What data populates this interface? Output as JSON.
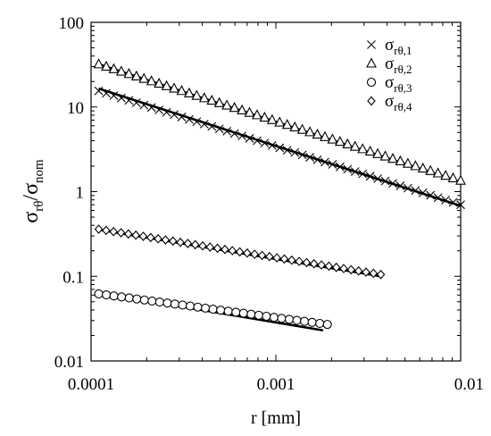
{
  "chart_data": {
    "type": "scatter",
    "x_scale": "log",
    "y_scale": "log",
    "xlim": [
      0.0001,
      0.01
    ],
    "ylim": [
      0.01,
      100
    ],
    "x_ticks": [
      "0.0001",
      "0.001",
      "0.01"
    ],
    "y_ticks": [
      "0.01",
      "0.1",
      "1",
      "10",
      "100"
    ],
    "xlabel": "r [mm]",
    "ylabel": {
      "main": "σ",
      "sub1": "rθ",
      "slash": "/σ",
      "sub2": "nom"
    },
    "grid": false,
    "legend_position": "top-right",
    "series": [
      {
        "key": "s1",
        "legend_main": "σ",
        "legend_sub": "rθ,1",
        "marker": "cross",
        "x_range": [
          0.00011,
          0.01
        ],
        "y_start": 15.5,
        "y_end": 0.7,
        "fit_line": {
          "x": [
            0.00011,
            0.01
          ],
          "y": [
            16.5,
            0.68
          ]
        }
      },
      {
        "key": "s2",
        "legend_main": "σ",
        "legend_sub": "rθ,2",
        "marker": "triangle",
        "x_range": [
          0.00011,
          0.01
        ],
        "y_start": 32,
        "y_end": 1.35,
        "fit_line": {
          "x": [
            0.00011,
            0.01
          ],
          "y": [
            32,
            1.3
          ]
        }
      },
      {
        "key": "s3",
        "legend_main": "σ",
        "legend_sub": "rθ,3",
        "marker": "circle",
        "x_range": [
          0.00011,
          0.0019
        ],
        "y_start": 0.062,
        "y_end": 0.027,
        "fit_line": {
          "x": [
            0.00011,
            0.0018
          ],
          "y": [
            0.064,
            0.023
          ]
        }
      },
      {
        "key": "s4",
        "legend_main": "σ",
        "legend_sub": "rθ,4",
        "marker": "diamond",
        "x_range": [
          0.00011,
          0.0037
        ],
        "y_start": 0.36,
        "y_end": 0.105,
        "fit_line": {
          "x": [
            0.00011,
            0.0037
          ],
          "y": [
            0.355,
            0.1
          ]
        }
      }
    ]
  }
}
